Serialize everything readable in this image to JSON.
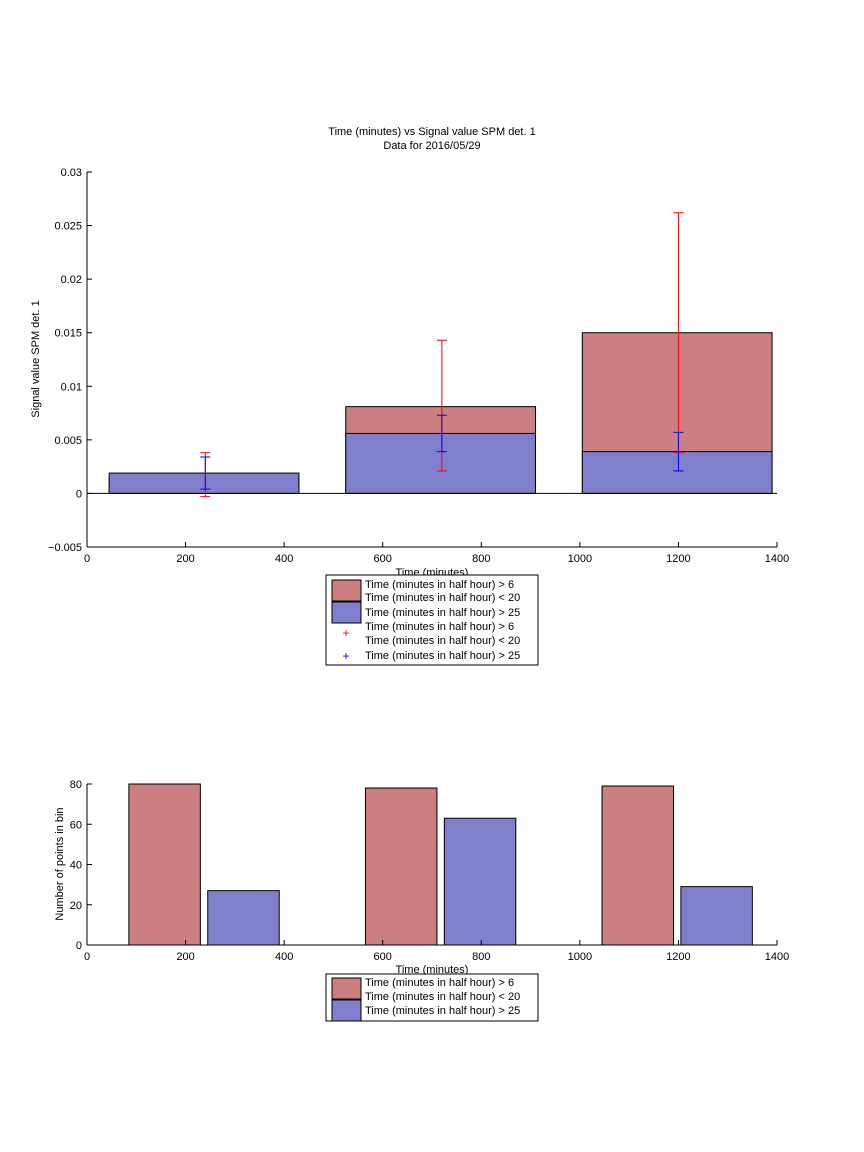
{
  "chart_data": [
    {
      "type": "bar",
      "title": "Time (minutes) vs Signal value SPM det. 1",
      "subtitle": "Data for 2016/05/29",
      "xlabel": "Time (minutes)",
      "ylabel": "Signal value SPM det. 1",
      "xlim": [
        0,
        1400
      ],
      "ylim": [
        -0.005,
        0.03
      ],
      "xticks": [
        "0",
        "200",
        "400",
        "600",
        "800",
        "1000",
        "1200",
        "1400"
      ],
      "yticks": [
        "−0.005",
        "0",
        "0.005",
        "0.01",
        "0.015",
        "0.02",
        "0.025",
        "0.03"
      ],
      "grid": false,
      "legend_position": "below",
      "series": [
        {
          "name": "Time (minutes in half hour) > 6\nTime (minutes in half hour) < 20",
          "color": "#cc7f7f",
          "bars": [
            {
              "x_start": 45,
              "x_end": 430,
              "value": 0.0015
            },
            {
              "x_start": 525,
              "x_end": 910,
              "value": 0.0081
            },
            {
              "x_start": 1005,
              "x_end": 1390,
              "value": 0.015
            }
          ]
        },
        {
          "name": "Time (minutes in half hour) > 25",
          "color": "#7f7fcc",
          "bars": [
            {
              "x_start": 45,
              "x_end": 430,
              "value": 0.0019
            },
            {
              "x_start": 525,
              "x_end": 910,
              "value": 0.0056
            },
            {
              "x_start": 1005,
              "x_end": 1390,
              "value": 0.0039
            }
          ]
        }
      ],
      "error_bars": [
        {
          "name": "Time (minutes in half hour) > 6\nTime (minutes in half hour) < 20",
          "color": "#ff0000",
          "points": [
            {
              "x": 240,
              "low": -0.0003,
              "high": 0.0038
            },
            {
              "x": 720,
              "low": 0.0021,
              "high": 0.0143
            },
            {
              "x": 1200,
              "low": 0.0038,
              "high": 0.0262
            }
          ]
        },
        {
          "name": "Time (minutes in half hour) > 25",
          "color": "#0000ff",
          "points": [
            {
              "x": 240,
              "low": 0.0004,
              "high": 0.0034
            },
            {
              "x": 720,
              "low": 0.0039,
              "high": 0.0073
            },
            {
              "x": 1200,
              "low": 0.0021,
              "high": 0.0057
            }
          ]
        }
      ]
    },
    {
      "type": "bar",
      "xlabel": "Time (minutes)",
      "ylabel": "Number of points in bin",
      "xlim": [
        0,
        1400
      ],
      "ylim": [
        0,
        80
      ],
      "xticks": [
        "0",
        "200",
        "400",
        "600",
        "800",
        "1000",
        "1200",
        "1400"
      ],
      "yticks": [
        "0",
        "20",
        "40",
        "60",
        "80"
      ],
      "grid": false,
      "legend_position": "below",
      "series": [
        {
          "name": "Time (minutes in half hour) > 6\nTime (minutes in half hour) < 20",
          "color": "#cc7f7f",
          "bars": [
            {
              "x_start": 85,
              "x_end": 230,
              "value": 80
            },
            {
              "x_start": 565,
              "x_end": 710,
              "value": 78
            },
            {
              "x_start": 1045,
              "x_end": 1190,
              "value": 79
            }
          ]
        },
        {
          "name": "Time (minutes in half hour) > 25",
          "color": "#7f7fcc",
          "bars": [
            {
              "x_start": 245,
              "x_end": 390,
              "value": 27
            },
            {
              "x_start": 725,
              "x_end": 870,
              "value": 63
            },
            {
              "x_start": 1205,
              "x_end": 1350,
              "value": 29
            }
          ]
        }
      ]
    }
  ]
}
